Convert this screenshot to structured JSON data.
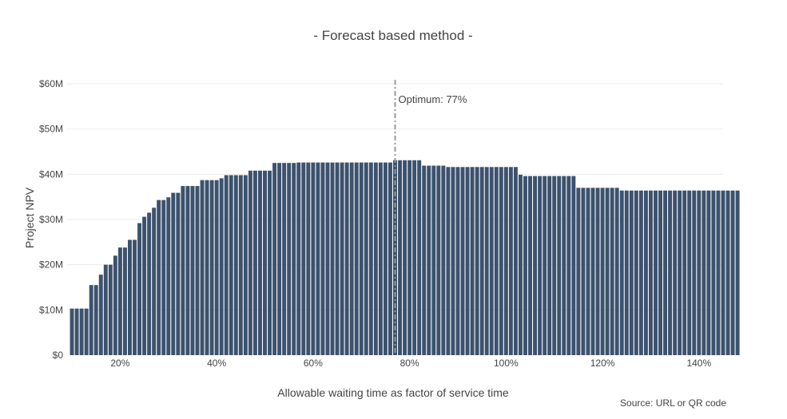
{
  "chart_data": {
    "type": "bar",
    "title": "-  Forecast based method  -",
    "xlabel": "Allowable waiting time as factor of service time",
    "ylabel": "Project NPV",
    "source": "Source: URL or QR code",
    "xlim": [
      9,
      145
    ],
    "ylim": [
      0,
      60
    ],
    "xticks": [
      {
        "value": 20,
        "label": "20%"
      },
      {
        "value": 40,
        "label": "40%"
      },
      {
        "value": 60,
        "label": "60%"
      },
      {
        "value": 80,
        "label": "80%"
      },
      {
        "value": 100,
        "label": "100%"
      },
      {
        "value": 120,
        "label": "120%"
      },
      {
        "value": 140,
        "label": "140%"
      }
    ],
    "yticks": [
      {
        "value": 0,
        "label": "$0"
      },
      {
        "value": 10,
        "label": "$10M"
      },
      {
        "value": 20,
        "label": "$20M"
      },
      {
        "value": 30,
        "label": "$30M"
      },
      {
        "value": 40,
        "label": "$40M"
      },
      {
        "value": 50,
        "label": "$50M"
      },
      {
        "value": 60,
        "label": "$60M"
      }
    ],
    "grid": true,
    "bar_color": "#3c526e",
    "annotation": {
      "x": 77,
      "text": "Optimum: 77%",
      "line_color": "#999999"
    },
    "x_start": 10,
    "x_step": 1,
    "values": [
      10.3,
      10.3,
      10.3,
      10.3,
      15.5,
      15.5,
      17.8,
      20.0,
      20.0,
      22.0,
      23.8,
      23.8,
      25.5,
      25.5,
      29.2,
      30.6,
      31.5,
      32.6,
      34.3,
      34.3,
      34.9,
      35.9,
      35.9,
      37.4,
      37.4,
      37.4,
      37.4,
      38.7,
      38.7,
      38.7,
      38.7,
      39.1,
      39.8,
      39.8,
      39.8,
      39.8,
      39.8,
      40.8,
      40.8,
      40.8,
      40.8,
      40.8,
      42.5,
      42.5,
      42.5,
      42.5,
      42.5,
      42.6,
      42.6,
      42.6,
      42.6,
      42.6,
      42.6,
      42.6,
      42.6,
      42.6,
      42.6,
      42.6,
      42.6,
      42.6,
      42.6,
      42.6,
      42.6,
      42.6,
      42.6,
      42.6,
      42.6,
      43.1,
      43.1,
      43.1,
      43.1,
      43.1,
      43.1,
      41.9,
      41.9,
      41.9,
      41.9,
      41.9,
      41.6,
      41.6,
      41.6,
      41.6,
      41.6,
      41.6,
      41.6,
      41.6,
      41.6,
      41.6,
      41.6,
      41.6,
      41.6,
      41.6,
      41.6,
      39.9,
      39.6,
      39.6,
      39.6,
      39.6,
      39.6,
      39.6,
      39.6,
      39.6,
      39.6,
      39.6,
      39.6,
      37.0,
      37.0,
      37.0,
      37.0,
      37.0,
      37.0,
      37.0,
      37.0,
      37.0,
      36.4,
      36.4,
      36.4,
      36.4,
      36.4,
      36.4,
      36.4,
      36.4,
      36.4,
      36.4,
      36.4,
      36.4,
      36.4,
      36.4,
      36.4,
      36.4,
      36.4,
      36.4,
      36.4,
      36.4,
      36.4,
      36.4,
      36.4,
      36.4,
      36.4
    ]
  }
}
